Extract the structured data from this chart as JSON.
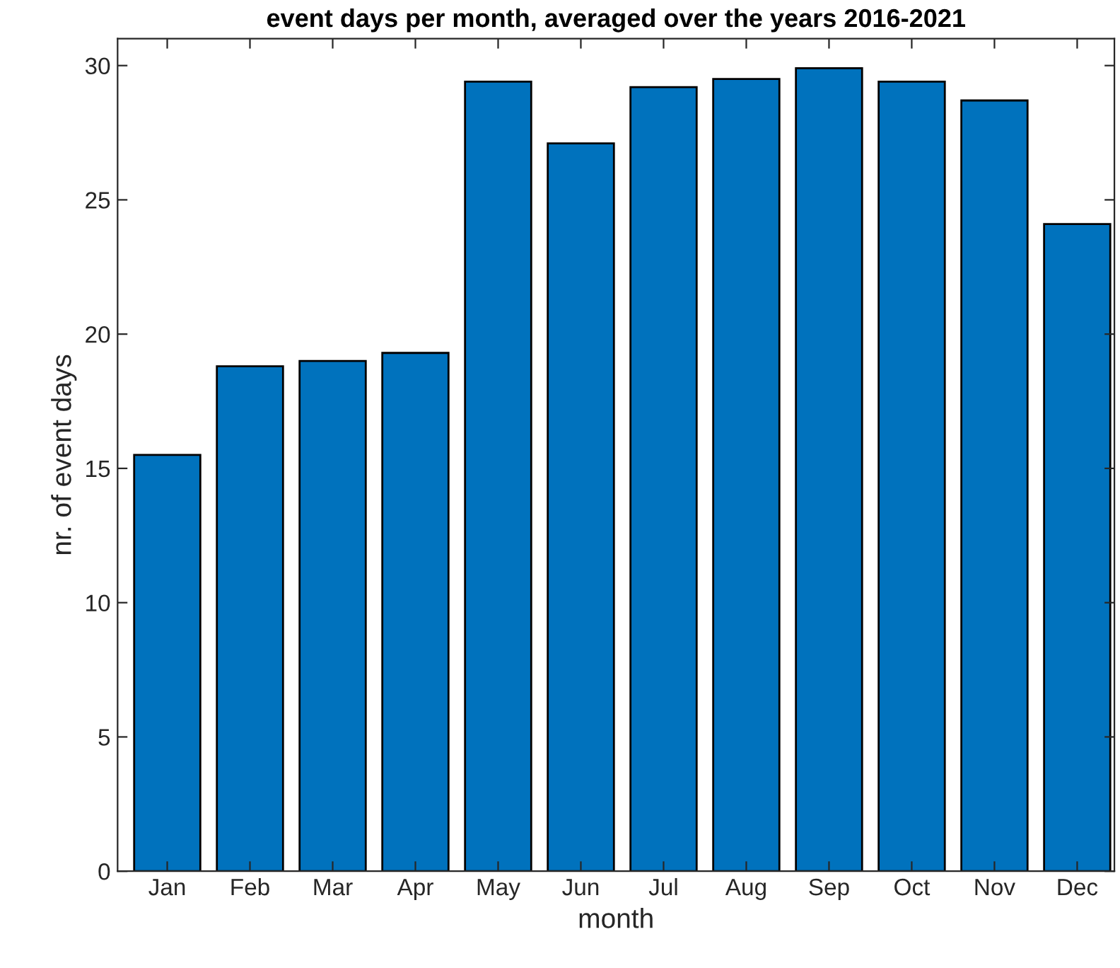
{
  "chart_data": {
    "type": "bar",
    "title": "event days per month, averaged over the years 2016-2021",
    "xlabel": "month",
    "ylabel": "nr. of event days",
    "categories": [
      "Jan",
      "Feb",
      "Mar",
      "Apr",
      "May",
      "Jun",
      "Jul",
      "Aug",
      "Sep",
      "Oct",
      "Nov",
      "Dec"
    ],
    "values": [
      15.5,
      18.8,
      19.0,
      19.3,
      29.4,
      27.1,
      29.2,
      29.5,
      29.9,
      29.4,
      28.7,
      24.1
    ],
    "color": "#0072bd",
    "ylim": [
      0,
      31
    ],
    "yticks": [
      0,
      5,
      10,
      15,
      20,
      25,
      30
    ],
    "grid": false
  }
}
